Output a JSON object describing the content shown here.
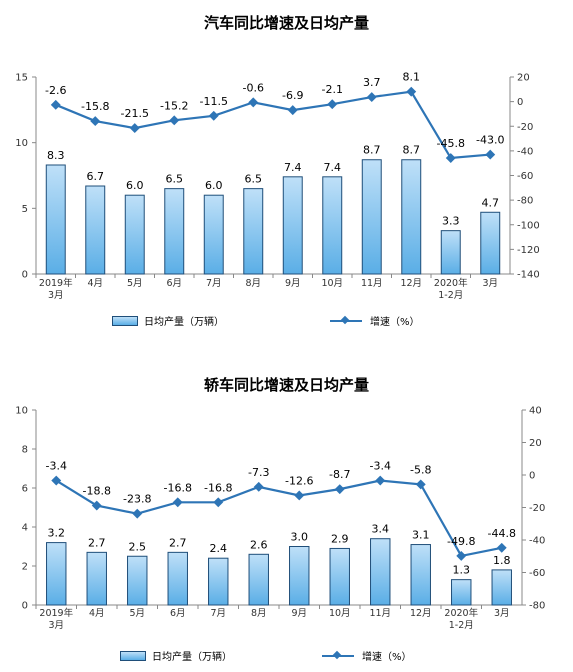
{
  "chart_data": [
    {
      "type": "bar",
      "title": "汽车同比增速及日均产量",
      "categories": [
        "2019年\n3月",
        "4月",
        "5月",
        "6月",
        "7月",
        "8月",
        "9月",
        "10月",
        "11月",
        "12月",
        "2020年\n1-2月",
        "3月"
      ],
      "series": [
        {
          "name": "日均产量（万辆）",
          "type": "bar",
          "axis": "left",
          "values": [
            8.3,
            6.7,
            6.0,
            6.5,
            6.0,
            6.5,
            7.4,
            7.4,
            8.7,
            8.7,
            3.3,
            4.7
          ]
        },
        {
          "name": "增速（%）",
          "type": "line",
          "axis": "right",
          "values": [
            -2.6,
            -15.8,
            -21.5,
            -15.2,
            -11.5,
            -0.6,
            -6.9,
            -2.1,
            3.7,
            8.1,
            -45.8,
            -43.0
          ]
        }
      ],
      "ylim_left": [
        0,
        15
      ],
      "yticks_left": [
        0,
        5,
        10,
        15
      ],
      "ylim_right": [
        -140,
        20
      ],
      "yticks_right": [
        -140,
        -120,
        -100,
        -80,
        -60,
        -40,
        -20,
        0,
        20
      ],
      "legend_position": "bottom",
      "colors": {
        "bar_light": "#bfe0f8",
        "bar_dark": "#5aaee6",
        "bar_border": "#1f4e79",
        "line": "#2e75b6"
      }
    },
    {
      "type": "bar",
      "title": "轿车同比增速及日均产量",
      "categories": [
        "2019年\n3月",
        "4月",
        "5月",
        "6月",
        "7月",
        "8月",
        "9月",
        "10月",
        "11月",
        "12月",
        "2020年\n1-2月",
        "3月"
      ],
      "series": [
        {
          "name": "日均产量（万辆）",
          "type": "bar",
          "axis": "left",
          "values": [
            3.2,
            2.7,
            2.5,
            2.7,
            2.4,
            2.6,
            3.0,
            2.9,
            3.4,
            3.1,
            1.3,
            1.8
          ]
        },
        {
          "name": "增速（%）",
          "type": "line",
          "axis": "right",
          "values": [
            -3.4,
            -18.8,
            -23.8,
            -16.8,
            -16.8,
            -7.3,
            -12.6,
            -8.7,
            -3.4,
            -5.8,
            -49.8,
            -44.8
          ]
        }
      ],
      "ylim_left": [
        0,
        10
      ],
      "yticks_left": [
        0,
        2,
        4,
        6,
        8,
        10
      ],
      "ylim_right": [
        -80,
        40
      ],
      "yticks_right": [
        -80,
        -60,
        -40,
        -20,
        0,
        20,
        40
      ],
      "legend_position": "bottom",
      "colors": {
        "bar_light": "#bfe0f8",
        "bar_dark": "#5aaee6",
        "bar_border": "#1f4e79",
        "line": "#2e75b6"
      }
    }
  ]
}
